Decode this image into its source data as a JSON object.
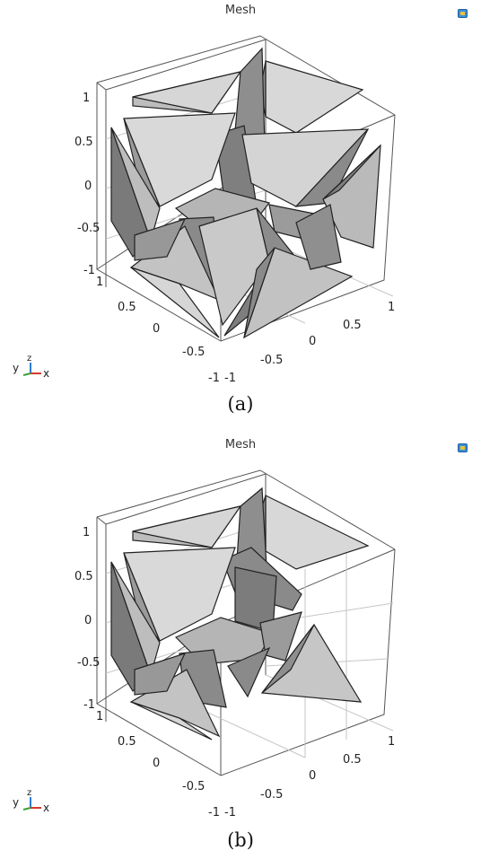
{
  "panels": [
    {
      "id": "a",
      "title": "Mesh",
      "caption": "(a)",
      "ticks": {
        "z": [
          "1",
          "0.5",
          "0",
          "-0.5",
          "-1"
        ],
        "y": [
          "1",
          "0.5",
          "0",
          "-0.5",
          "-1"
        ],
        "x": [
          "-1",
          "-0.5",
          "0",
          "0.5",
          "1"
        ]
      },
      "triad": {
        "y": "y",
        "z": "z",
        "x": "x"
      }
    },
    {
      "id": "b",
      "title": "Mesh",
      "caption": "(b)",
      "ticks": {
        "z": [
          "1",
          "0.5",
          "0",
          "-0.5",
          "-1"
        ],
        "y": [
          "1",
          "0.5",
          "0",
          "-0.5",
          "-1"
        ],
        "x": [
          "-1",
          "-0.5",
          "0",
          "0.5",
          "1"
        ]
      },
      "triad": {
        "y": "y",
        "z": "z",
        "x": "x"
      }
    }
  ]
}
